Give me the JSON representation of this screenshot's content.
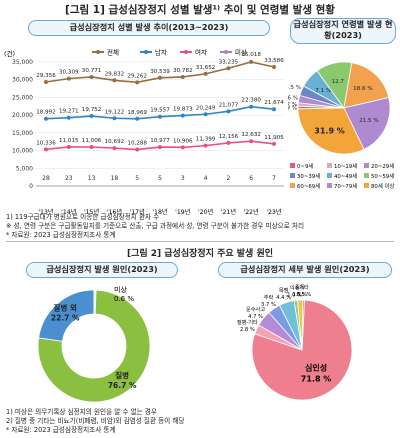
{
  "fig1": {
    "title": "[그림 1] 급성심장정지 성별 발생¹⁾ 추이 및 연령별 발생 현황",
    "line_title": "급성심장정지 성별 발생 추이(2013~2023)",
    "pie_title": "급성심장정지 연령별 발생 현황(2023)",
    "y_unit": "(건)",
    "notes": [
      "1) 119구급대가 병원으로 이송한 급성심장정지 환자 수",
      "※ 성, 연령 구분은 구급활동일지를 기준으로 산출, 구급 과정에서 성, 연령 구분이 불가한 경우 미상으로 처리",
      "* 자료원: 2023 급성심장정지조사 통계"
    ]
  },
  "fig2": {
    "title": "[그림 2] 급성심장정지 주요 발생 원인",
    "left_title": "급성심장정지 발생 원인(2023)",
    "right_title": "급성심장정지 세부 발생 원인(2023)",
    "notes": [
      "1) 미상은 의무기록상 심정지의 원인을 알 수 없는 경우",
      "2) 질병 중 기타는 비뇨기(비폐렴, 비암)외 김염성 질환 등이 해당",
      "* 자료원: 2023 급성심장정지조사 통계"
    ]
  },
  "colors": {
    "total": "#9c6b3e",
    "male": "#2e86c8",
    "female": "#e8507a",
    "unknown": "#b07cc6",
    "green": "#8bbf3f",
    "blue": "#4a90d0",
    "pink": "#ef7f8f"
  },
  "chart_data": [
    {
      "type": "line",
      "x": [
        "'13년",
        "'14년",
        "'15년",
        "'16년",
        "'17년",
        "'18년",
        "'19년",
        "'20년",
        "'21년",
        "'22년",
        "'23년"
      ],
      "ylim": [
        0,
        35000
      ],
      "yticks": [
        "0",
        "5,000",
        "10,000",
        "15,000",
        "20,000",
        "25,000",
        "30,000",
        "35,000"
      ],
      "legend_position": "top",
      "series": [
        {
          "name": "전체",
          "values": [
            29356,
            30309,
            30771,
            29832,
            29262,
            30539,
            30782,
            31652,
            33235,
            35018,
            33586
          ],
          "labels": [
            "29,356",
            "30,309",
            "30,771",
            "29,832",
            "29,262",
            "30,539",
            "30,782",
            "31,652",
            "33,235",
            "35,018",
            "33,586"
          ]
        },
        {
          "name": "남자",
          "values": [
            18992,
            19271,
            19752,
            19122,
            18969,
            19557,
            19873,
            20249,
            21077,
            22380,
            21674
          ],
          "labels": [
            "18,992",
            "19,271",
            "19,752",
            "19,122",
            "18,969",
            "19,557",
            "19,873",
            "20,249",
            "21,077",
            "22,380",
            "21,674"
          ]
        },
        {
          "name": "여자",
          "values": [
            10336,
            11015,
            11006,
            10692,
            10288,
            10977,
            10906,
            11399,
            12156,
            12632,
            11905
          ],
          "labels": [
            "10,336",
            "11,015",
            "11,006",
            "10,692",
            "10,288",
            "10,977",
            "10,906",
            "11,399",
            "12,156",
            "12,632",
            "11,905"
          ]
        },
        {
          "name": "미상",
          "values": [
            28,
            23,
            13,
            18,
            5,
            5,
            3,
            4,
            2,
            6,
            7
          ],
          "labels": [
            "28",
            "23",
            "13",
            "18",
            "5",
            "5",
            "3",
            "4",
            "2",
            "6",
            "7"
          ]
        }
      ]
    },
    {
      "type": "pie",
      "categories": [
        "0~9세",
        "10~19세",
        "20~29세",
        "30~39세",
        "40~49세",
        "50~59세",
        "60~69세",
        "70~79세",
        "80세 이상"
      ],
      "values": [
        0.9,
        1.2,
        2.6,
        3.5,
        7.1,
        12.7,
        18.6,
        21.5,
        31.9
      ],
      "labels": [
        "0.9 %",
        "1.2 %",
        "2.6 %",
        "3.5 %",
        "7.1 %",
        "12.7",
        "18.6 %",
        "21.5 %",
        "31.9 %"
      ],
      "colors": [
        "#e05a7a",
        "#d7a9c9",
        "#ab8ed0",
        "#6d86c8",
        "#68b0d4",
        "#8bc96f",
        "#f2a14f",
        "#b08ad0",
        "#f4a53a"
      ],
      "legend_position": "bottom"
    },
    {
      "type": "pie",
      "categories": [
        "질병 외",
        "미상",
        "질병"
      ],
      "values": [
        22.7,
        0.6,
        76.7
      ],
      "labels": [
        "22.7 %",
        "0.6 %",
        "76.7 %"
      ],
      "colors": [
        "#4a90d0",
        "#e8e8e8",
        "#8bbf3f"
      ]
    },
    {
      "type": "pie",
      "categories": [
        "심인성",
        "질병-기타",
        "운수사고",
        "추락",
        "목맴",
        "익수",
        "중독",
        "기타"
      ],
      "values": [
        71.8,
        2.8,
        4.7,
        3.7,
        4.4,
        1.0,
        1.5,
        0.5
      ],
      "labels": [
        "71.8 %",
        "2.8 %",
        "4.7 %",
        "3.7 %",
        "4.4 %",
        "1.0 %",
        "1.5 %",
        "0.5 %"
      ],
      "colors": [
        "#ef7f8f",
        "#f4a3b4",
        "#b58ad8",
        "#7d9be0",
        "#6fc0d8",
        "#8fd07a",
        "#f2c14f",
        "#f29450"
      ]
    }
  ]
}
